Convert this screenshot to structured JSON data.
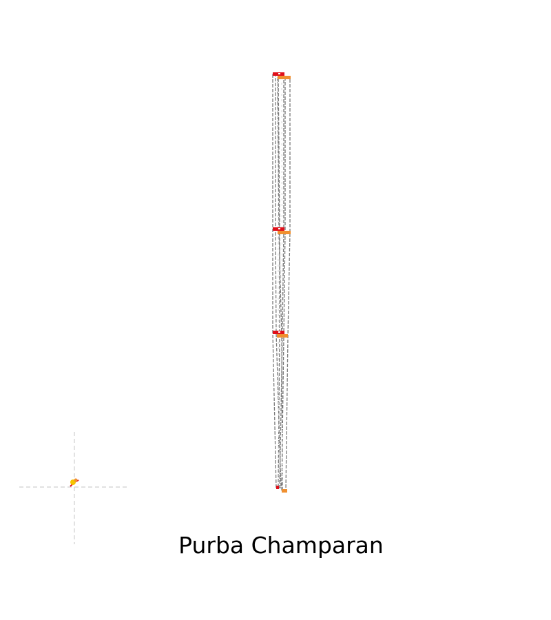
{
  "caption": "Purba Champaran",
  "colors": {
    "background": "#ffffff",
    "outline": "#7a7a7a",
    "guide": "#cfcfcf",
    "marker_red": "#e0101a",
    "marker_orange": "#f09030",
    "marker_yellow": "#f5c400"
  }
}
